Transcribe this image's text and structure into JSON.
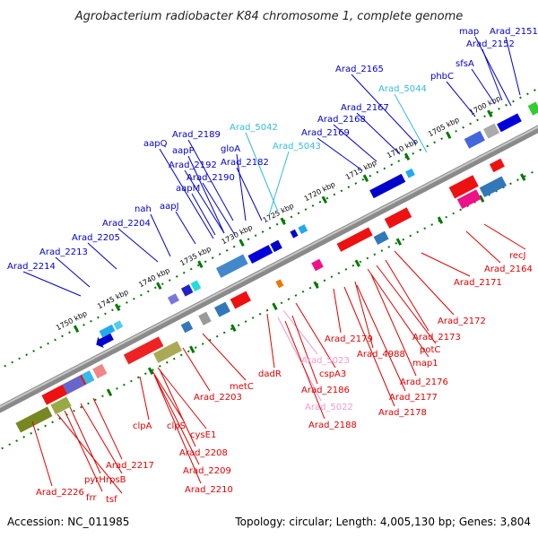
{
  "title": "Agrobacterium radiobacter K84 chromosome 1, complete genome",
  "accession": "Accession: NC_011985",
  "topology": "Topology: circular; Length: 4,005,130 bp; Genes: 3,804",
  "colors": {
    "forward": "#e00000",
    "reverse": "#0000cc",
    "rna_light": "#33bbdd",
    "pseudo_pink": "#ee99cc",
    "backbone": "#888888",
    "tick_green": "#007700"
  },
  "kbp_ticks_top": [
    "1700 kbp",
    "1705 kbp",
    "1710 kbp",
    "1715 kbp",
    "1720 kbp",
    "1725 kbp",
    "1730 kbp",
    "1735 kbp",
    "1740 kbp",
    "1745 kbp",
    "1750 kbp"
  ],
  "top_labels": [
    {
      "text": "map",
      "color": "#0000cc"
    },
    {
      "text": "Arad_2151",
      "color": "#0000cc"
    },
    {
      "text": "Arad_2152",
      "color": "#0000cc"
    },
    {
      "text": "sfsA",
      "color": "#0000cc"
    },
    {
      "text": "phbC",
      "color": "#0000cc"
    },
    {
      "text": "Arad_2165",
      "color": "#0000cc"
    },
    {
      "text": "Arad_5044",
      "color": "#33bbdd"
    },
    {
      "text": "Arad_2167",
      "color": "#0000cc"
    },
    {
      "text": "Arad_2168",
      "color": "#0000cc"
    },
    {
      "text": "Arad_2169",
      "color": "#0000cc"
    },
    {
      "text": "Arad_5042",
      "color": "#33bbdd"
    },
    {
      "text": "Arad_5043",
      "color": "#33bbdd"
    },
    {
      "text": "Arad_2189",
      "color": "#0000cc"
    },
    {
      "text": "gloA",
      "color": "#0000cc"
    },
    {
      "text": "aapQ",
      "color": "#0000cc"
    },
    {
      "text": "aapP",
      "color": "#0000cc"
    },
    {
      "text": "Arad_2182",
      "color": "#0000cc"
    },
    {
      "text": "Arad_2192",
      "color": "#0000cc"
    },
    {
      "text": "Arad_2190",
      "color": "#0000cc"
    },
    {
      "text": "aapM",
      "color": "#0000cc"
    },
    {
      "text": "aapJ",
      "color": "#0000cc"
    },
    {
      "text": "nah",
      "color": "#0000cc"
    },
    {
      "text": "Arad_2204",
      "color": "#0000cc"
    },
    {
      "text": "Arad_2205",
      "color": "#0000cc"
    },
    {
      "text": "Arad_2213",
      "color": "#0000cc"
    },
    {
      "text": "Arad_2214",
      "color": "#0000cc"
    }
  ],
  "bottom_labels": [
    {
      "text": "recJ",
      "color": "#e00000"
    },
    {
      "text": "Arad_2164",
      "color": "#e00000"
    },
    {
      "text": "Arad_2171",
      "color": "#e00000"
    },
    {
      "text": "Arad_2172",
      "color": "#e00000"
    },
    {
      "text": "Arad_2173",
      "color": "#e00000"
    },
    {
      "text": "potC",
      "color": "#e00000"
    },
    {
      "text": "map1",
      "color": "#e00000"
    },
    {
      "text": "Arad_2179",
      "color": "#e00000"
    },
    {
      "text": "Arad_4988",
      "color": "#e00000"
    },
    {
      "text": "Arad_2176",
      "color": "#e00000"
    },
    {
      "text": "Arad_2177",
      "color": "#e00000"
    },
    {
      "text": "Arad_2178",
      "color": "#e00000"
    },
    {
      "text": "Arad_5023",
      "color": "#ee99cc"
    },
    {
      "text": "cspA3",
      "color": "#e00000"
    },
    {
      "text": "Arad_2186",
      "color": "#e00000"
    },
    {
      "text": "Arad_5022",
      "color": "#ee99cc"
    },
    {
      "text": "Arad_2188",
      "color": "#e00000"
    },
    {
      "text": "dadR",
      "color": "#e00000"
    },
    {
      "text": "metC",
      "color": "#e00000"
    },
    {
      "text": "Arad_2203",
      "color": "#e00000"
    },
    {
      "text": "clpA",
      "color": "#e00000"
    },
    {
      "text": "clpS",
      "color": "#e00000"
    },
    {
      "text": "cysE1",
      "color": "#e00000"
    },
    {
      "text": "Arad_2208",
      "color": "#e00000"
    },
    {
      "text": "Arad_2209",
      "color": "#e00000"
    },
    {
      "text": "Arad_2210",
      "color": "#e00000"
    },
    {
      "text": "Arad_2217",
      "color": "#e00000"
    },
    {
      "text": "rpsB",
      "color": "#e00000"
    },
    {
      "text": "pyrH",
      "color": "#e00000"
    },
    {
      "text": "frr",
      "color": "#e00000"
    },
    {
      "text": "tsf",
      "color": "#e00000"
    },
    {
      "text": "Arad_2226",
      "color": "#e00000"
    }
  ]
}
